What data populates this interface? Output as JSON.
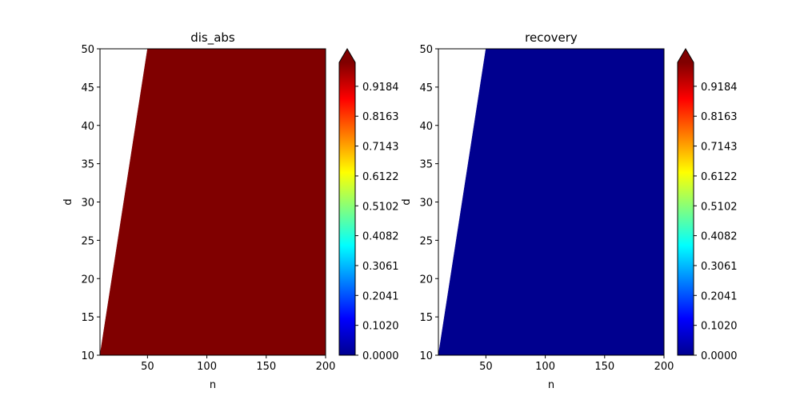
{
  "chart_data": [
    {
      "type": "heatmap",
      "title": "dis_abs",
      "xlabel": "n",
      "ylabel": "d",
      "xlim": [
        10,
        200
      ],
      "ylim": [
        10,
        50
      ],
      "xticks": [
        "50",
        "100",
        "150",
        "200"
      ],
      "yticks": [
        "10",
        "15",
        "20",
        "25",
        "30",
        "35",
        "40",
        "45",
        "50"
      ],
      "filled_region": [
        [
          10,
          10
        ],
        [
          50,
          50
        ],
        [
          200,
          50
        ],
        [
          200,
          10
        ]
      ],
      "value": 1.0,
      "fill_color": "#800000",
      "colorbar": {
        "ticks": [
          "0.0000",
          "0.1020",
          "0.2041",
          "0.3061",
          "0.4082",
          "0.5102",
          "0.6122",
          "0.7143",
          "0.8163",
          "0.9184"
        ],
        "range": [
          0,
          1
        ],
        "extend": "max",
        "colormap": "jet"
      }
    },
    {
      "type": "heatmap",
      "title": "recovery",
      "xlabel": "n",
      "ylabel": "d",
      "xlim": [
        10,
        200
      ],
      "ylim": [
        10,
        50
      ],
      "xticks": [
        "50",
        "100",
        "150",
        "200"
      ],
      "yticks": [
        "10",
        "15",
        "20",
        "25",
        "30",
        "35",
        "40",
        "45",
        "50"
      ],
      "filled_region": [
        [
          10,
          10
        ],
        [
          50,
          50
        ],
        [
          200,
          50
        ],
        [
          200,
          10
        ]
      ],
      "value": 0.0,
      "fill_color": "#00008f",
      "colorbar": {
        "ticks": [
          "0.0000",
          "0.1020",
          "0.2041",
          "0.3061",
          "0.4082",
          "0.5102",
          "0.6122",
          "0.7143",
          "0.8163",
          "0.9184"
        ],
        "range": [
          0,
          1
        ],
        "extend": "max",
        "colormap": "jet"
      }
    }
  ]
}
